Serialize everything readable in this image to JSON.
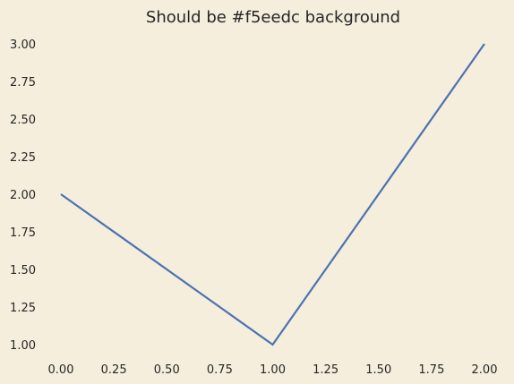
{
  "chart_data": {
    "type": "line",
    "title": "Should be #f5eedc background",
    "xlabel": "",
    "ylabel": "",
    "x": [
      0,
      1,
      2
    ],
    "series": [
      {
        "values": [
          2,
          1,
          3
        ],
        "color": "#4c72b0"
      }
    ],
    "xlim": [
      -0.0,
      2.0
    ],
    "ylim": [
      1.0,
      3.0
    ],
    "xticks": [
      "0.00",
      "0.25",
      "0.50",
      "0.75",
      "1.00",
      "1.25",
      "1.50",
      "1.75",
      "2.00"
    ],
    "yticks": [
      "1.00",
      "1.25",
      "1.50",
      "1.75",
      "2.00",
      "2.25",
      "2.50",
      "2.75",
      "3.00"
    ],
    "grid": false,
    "background": "#f5eedc",
    "text_color": "#262626"
  }
}
